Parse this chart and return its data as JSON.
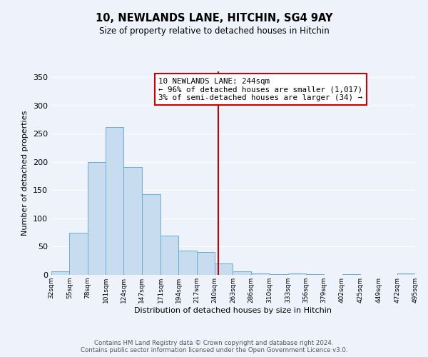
{
  "title": "10, NEWLANDS LANE, HITCHIN, SG4 9AY",
  "subtitle": "Size of property relative to detached houses in Hitchin",
  "xlabel": "Distribution of detached houses by size in Hitchin",
  "ylabel": "Number of detached properties",
  "bin_edges": [
    32,
    55,
    78,
    101,
    124,
    147,
    171,
    194,
    217,
    240,
    263,
    286,
    310,
    333,
    356,
    379,
    402,
    425,
    449,
    472,
    495
  ],
  "counts": [
    6,
    75,
    200,
    261,
    191,
    143,
    70,
    43,
    40,
    20,
    6,
    3,
    1,
    3,
    1,
    0,
    1,
    0,
    0,
    2
  ],
  "bar_color": "#c8dcf0",
  "bar_edge_color": "#6aadd5",
  "property_value": 244,
  "vline_color": "#cc0000",
  "annotation_text": "10 NEWLANDS LANE: 244sqm\n← 96% of detached houses are smaller (1,017)\n3% of semi-detached houses are larger (34) →",
  "annotation_box_color": "#ffffff",
  "annotation_box_edge": "#cc0000",
  "footer_line1": "Contains HM Land Registry data © Crown copyright and database right 2024.",
  "footer_line2": "Contains public sector information licensed under the Open Government Licence v3.0.",
  "tick_labels": [
    "32sqm",
    "55sqm",
    "78sqm",
    "101sqm",
    "124sqm",
    "147sqm",
    "171sqm",
    "194sqm",
    "217sqm",
    "240sqm",
    "263sqm",
    "286sqm",
    "310sqm",
    "333sqm",
    "356sqm",
    "379sqm",
    "402sqm",
    "425sqm",
    "449sqm",
    "472sqm",
    "495sqm"
  ],
  "ylim": [
    0,
    360
  ],
  "background_color": "#eef2fa",
  "grid_color": "#ffffff",
  "title_fontsize": 10.5,
  "subtitle_fontsize": 8.5
}
